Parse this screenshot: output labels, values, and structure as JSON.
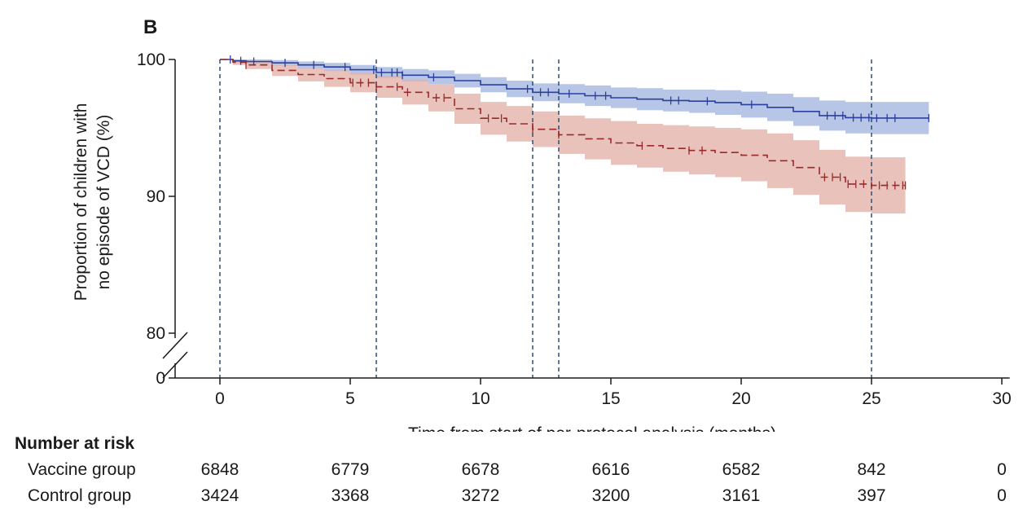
{
  "chart_data": {
    "type": "line",
    "panel_label": "B",
    "xlabel": "Time from start of per-protocol analysis (months)",
    "ylabel_lines": [
      "Proportion of children with",
      "no episode of VCD (%)"
    ],
    "xlim": [
      -1.5,
      30.3
    ],
    "ylim": [
      80,
      100
    ],
    "y_axis_break": true,
    "x_ticks": [
      0,
      5,
      10,
      15,
      20,
      25,
      30
    ],
    "y_ticks": [
      0,
      80,
      90,
      100
    ],
    "vertical_reference_lines": [
      0,
      6,
      12,
      13,
      25
    ],
    "colors": {
      "vaccine_line": "#2b3f9e",
      "vaccine_band": "#9fb2dd",
      "control_line": "#9a2a2a",
      "control_band": "#e2aea4",
      "reference_line": "#2f4f6f"
    },
    "series": [
      {
        "key": "vaccine",
        "x": [
          0,
          0.5,
          1,
          2,
          3,
          4,
          5,
          6,
          7,
          8,
          9,
          10,
          11,
          12,
          13,
          14,
          15,
          16,
          17,
          18,
          19,
          20,
          21,
          22,
          23,
          24,
          25,
          26,
          27.2
        ],
        "y": [
          100,
          99.9,
          99.85,
          99.75,
          99.6,
          99.45,
          99.25,
          99.05,
          98.85,
          98.7,
          98.45,
          98.15,
          97.85,
          97.6,
          97.5,
          97.35,
          97.2,
          97.1,
          97.0,
          96.95,
          96.85,
          96.7,
          96.5,
          96.2,
          95.9,
          95.75,
          95.72,
          95.72,
          95.72
        ],
        "lower": [
          100,
          99.8,
          99.7,
          99.55,
          99.35,
          99.15,
          98.9,
          98.65,
          98.4,
          98.2,
          97.95,
          97.6,
          97.25,
          96.95,
          96.8,
          96.6,
          96.45,
          96.3,
          96.2,
          96.1,
          95.95,
          95.75,
          95.5,
          95.15,
          94.8,
          94.6,
          94.55,
          94.55,
          94.55
        ],
        "upper": [
          100,
          100,
          100,
          99.95,
          99.85,
          99.75,
          99.6,
          99.45,
          99.3,
          99.2,
          98.95,
          98.7,
          98.45,
          98.25,
          98.2,
          98.1,
          97.95,
          97.9,
          97.8,
          97.8,
          97.75,
          97.65,
          97.5,
          97.25,
          97.0,
          96.9,
          96.9,
          96.9,
          96.9
        ],
        "censor_x": [
          0.4,
          0.8,
          1.3,
          2.5,
          3.6,
          4.8,
          5.9,
          6.2,
          6.6,
          6.8,
          7.0,
          8.2,
          11.8,
          12.3,
          12.6,
          13.4,
          14.4,
          14.8,
          17.3,
          17.6,
          18.7,
          20.4,
          23.3,
          23.6,
          23.9,
          24.3,
          24.6,
          24.9,
          25.2,
          25.6,
          25.9,
          27.2
        ]
      },
      {
        "key": "control",
        "x": [
          0,
          0.5,
          1,
          2,
          3,
          4,
          5,
          6,
          7,
          8,
          9,
          10,
          11,
          12,
          13,
          14,
          15,
          16,
          17,
          18,
          19,
          20,
          21,
          22,
          23,
          24,
          25,
          26,
          26.3
        ],
        "y": [
          100,
          99.8,
          99.6,
          99.2,
          98.9,
          98.6,
          98.3,
          98.0,
          97.6,
          97.2,
          96.4,
          95.7,
          95.3,
          94.9,
          94.5,
          94.2,
          93.9,
          93.7,
          93.5,
          93.35,
          93.2,
          93.0,
          92.6,
          92.1,
          91.4,
          90.9,
          90.8,
          90.8,
          90.8
        ],
        "lower": [
          100,
          99.6,
          99.3,
          98.8,
          98.4,
          98.0,
          97.6,
          97.2,
          96.7,
          96.2,
          95.3,
          94.5,
          94.0,
          93.6,
          93.1,
          92.7,
          92.3,
          92.1,
          91.8,
          91.6,
          91.4,
          91.1,
          90.6,
          90.1,
          89.4,
          88.85,
          88.75,
          88.75,
          88.75
        ],
        "upper": [
          100,
          100,
          99.9,
          99.6,
          99.4,
          99.2,
          99.0,
          98.8,
          98.5,
          98.2,
          97.5,
          96.9,
          96.6,
          96.2,
          95.9,
          95.7,
          95.5,
          95.3,
          95.2,
          95.1,
          95.0,
          94.9,
          94.6,
          94.1,
          93.4,
          92.9,
          92.85,
          92.85,
          92.85
        ],
        "censor_x": [
          1.0,
          5.1,
          5.4,
          5.7,
          6.0,
          6.8,
          7.2,
          8.3,
          8.6,
          10.3,
          10.8,
          12.0,
          13.0,
          16.2,
          18.0,
          18.5,
          23.2,
          23.5,
          23.8,
          24.1,
          24.4,
          24.7,
          25.0,
          25.3,
          25.6,
          25.9,
          26.2,
          26.3
        ]
      }
    ]
  },
  "risk_table": {
    "title": "Number at risk",
    "times": [
      0,
      5,
      10,
      15,
      20,
      25,
      30
    ],
    "rows": [
      {
        "label": "Vaccine group",
        "values": [
          "6848",
          "6779",
          "6678",
          "6616",
          "6582",
          "842",
          "0"
        ]
      },
      {
        "label": "Control group",
        "values": [
          "3424",
          "3368",
          "3272",
          "3200",
          "3161",
          "397",
          "0"
        ]
      }
    ]
  }
}
